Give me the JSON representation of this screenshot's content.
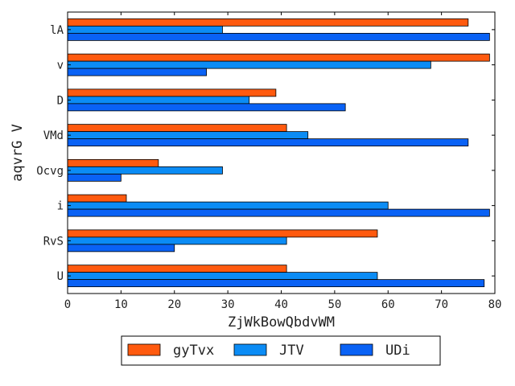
{
  "chart_data": {
    "type": "bar",
    "orientation": "horizontal",
    "categories": [
      "U",
      "RvS",
      "i",
      "Ocvg",
      "VMd",
      "D",
      "v",
      "lA"
    ],
    "series": [
      {
        "name": "gyTvx",
        "color": "#ff5a0f",
        "values": [
          41,
          58,
          11,
          17,
          41,
          39,
          79,
          75
        ]
      },
      {
        "name": "JTV",
        "color": "#0b8cf5",
        "values": [
          58,
          41,
          60,
          29,
          45,
          34,
          68,
          29
        ]
      },
      {
        "name": "UDi",
        "color": "#0a62f5",
        "values": [
          78,
          20,
          79,
          10,
          75,
          52,
          26,
          79
        ]
      }
    ],
    "title": "",
    "xlabel": "ZjWkBowQbdvWM",
    "ylabel": "aqvrG V",
    "xlim": [
      0,
      80
    ],
    "xticks": [
      0,
      10,
      20,
      30,
      40,
      50,
      60,
      70,
      80
    ],
    "grid": false,
    "legend_position": "bottom-center"
  }
}
